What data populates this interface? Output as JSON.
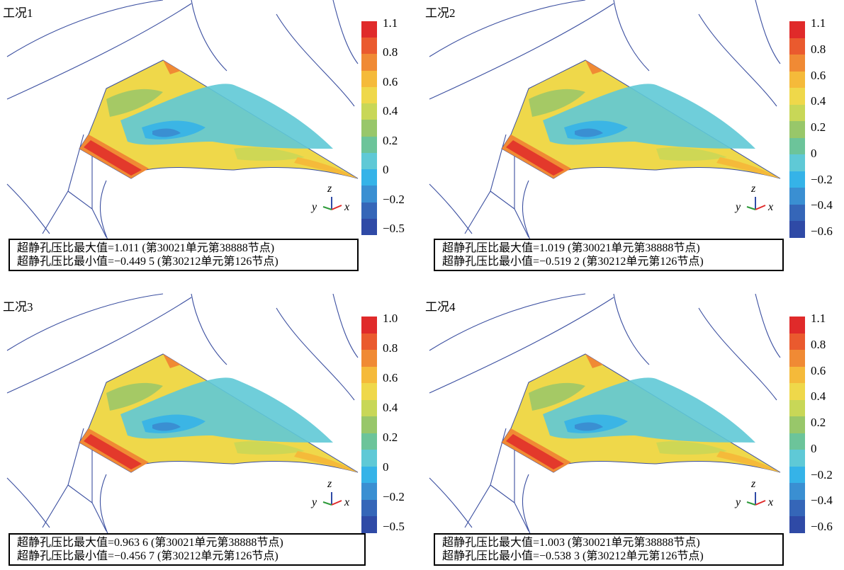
{
  "legend_colors": [
    "#e02a2a",
    "#ea5a2e",
    "#f08a34",
    "#f5ba3a",
    "#efd84a",
    "#c8d757",
    "#98c76a",
    "#6cc49a",
    "#5fc9d6",
    "#35b3e8",
    "#3a8fd2",
    "#3566b8",
    "#2f4aa6"
  ],
  "axis_labels": {
    "z": "z",
    "y": "y",
    "x": "x"
  },
  "panels": [
    {
      "id": "case1",
      "title": "工况1",
      "legend_ticks": [
        "1.1",
        "0.8",
        "0.6",
        "0.4",
        "0.2",
        "0",
        "−0.2",
        "−0.5"
      ],
      "info_max": "超静孔压比最大值=1.011 (第30021单元第38888节点)",
      "info_min": "超静孔压比最小值=−0.449 5 (第30212单元第126节点)"
    },
    {
      "id": "case2",
      "title": "工况2",
      "legend_ticks": [
        "1.1",
        "0.8",
        "0.6",
        "0.4",
        "0.2",
        "0",
        "−0.2",
        "−0.4",
        "−0.6"
      ],
      "info_max": "超静孔压比最大值=1.019 (第30021单元第38888节点)",
      "info_min": "超静孔压比最小值=−0.519 2 (第30212单元第126节点)"
    },
    {
      "id": "case3",
      "title": "工况3",
      "legend_ticks": [
        "1.0",
        "0.8",
        "0.6",
        "0.4",
        "0.2",
        "0",
        "−0.2",
        "−0.5"
      ],
      "info_max": "超静孔压比最大值=0.963 6 (第30021单元第38888节点)",
      "info_min": "超静孔压比最小值=−0.456 7 (第30212单元第126节点)"
    },
    {
      "id": "case4",
      "title": "工况4",
      "legend_ticks": [
        "1.1",
        "0.8",
        "0.6",
        "0.4",
        "0.2",
        "0",
        "−0.2",
        "−0.4",
        "−0.6"
      ],
      "info_max": "超静孔压比最大值=1.003 (第30021单元第38888节点)",
      "info_min": "超静孔压比最小值=−0.538 3 (第30212单元第126节点)"
    }
  ]
}
